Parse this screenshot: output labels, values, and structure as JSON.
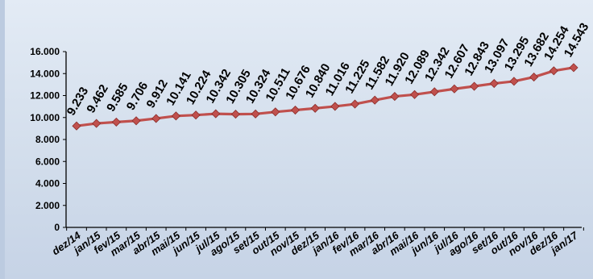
{
  "chart_data": {
    "type": "line",
    "title": "",
    "xlabel": "",
    "ylabel": "",
    "ylim": [
      0,
      16000
    ],
    "yticks": [
      0,
      2000,
      4000,
      6000,
      8000,
      10000,
      12000,
      14000,
      16000
    ],
    "ytick_labels": [
      "0",
      "2.000",
      "4.000",
      "6.000",
      "8.000",
      "10.000",
      "12.000",
      "14.000",
      "16.000"
    ],
    "grid": false,
    "legend": "none",
    "series_color": "#c0504d",
    "categories": [
      "dez/14",
      "jan/15",
      "fev/15",
      "mar/15",
      "abr/15",
      "mai/15",
      "jun/15",
      "jul/15",
      "ago/15",
      "set/15",
      "out/15",
      "nov/15",
      "dez/15",
      "jan/16",
      "fev/16",
      "mar/16",
      "abr/16",
      "mai/16",
      "jun/16",
      "jul/16",
      "ago/16",
      "set/16",
      "out/16",
      "nov/16",
      "dez/16",
      "jan/17"
    ],
    "values": [
      9233,
      9462,
      9585,
      9706,
      9912,
      10141,
      10224,
      10342,
      10305,
      10324,
      10511,
      10676,
      10840,
      11016,
      11225,
      11582,
      11920,
      12089,
      12342,
      12607,
      12843,
      13097,
      13295,
      13682,
      14254,
      14543
    ],
    "data_labels": [
      "9.233",
      "9.462",
      "9.585",
      "9.706",
      "9.912",
      "10.141",
      "10.224",
      "10.342",
      "10.305",
      "10.324",
      "10.511",
      "10.676",
      "10.840",
      "11.016",
      "11.225",
      "11.582",
      "11.920",
      "12.089",
      "12.342",
      "12.607",
      "12.843",
      "13.097",
      "13.295",
      "13.682",
      "14.254",
      "14.543"
    ]
  }
}
